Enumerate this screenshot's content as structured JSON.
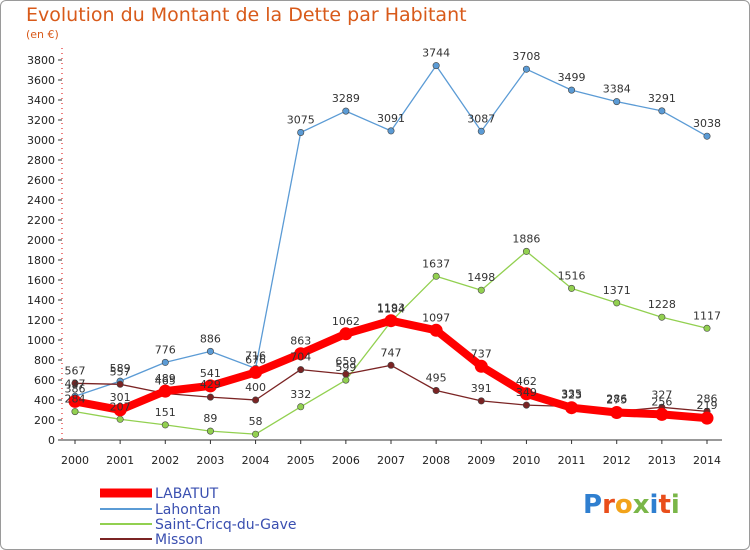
{
  "chart_data": {
    "type": "line",
    "title": "Evolution du Montant de la Dette par Habitant",
    "subtitle": "(en €)",
    "x": [
      "2000",
      "2001",
      "2002",
      "2003",
      "2004",
      "2005",
      "2006",
      "2007",
      "2008",
      "2009",
      "2010",
      "2011",
      "2012",
      "2013",
      "2014"
    ],
    "ylim": [
      0,
      3800
    ],
    "yticks": [
      0,
      200,
      400,
      600,
      800,
      1000,
      1200,
      1400,
      1600,
      1800,
      2000,
      2200,
      2400,
      2600,
      2800,
      3000,
      3200,
      3400,
      3600,
      3800
    ],
    "grid": false,
    "legend_position": "bottom-left",
    "series": [
      {
        "name": "LABATUT",
        "color": "#ff0000",
        "values": [
          386,
          301,
          489,
          541,
          676,
          863,
          1062,
          1193,
          1097,
          737,
          462,
          323,
          275,
          256,
          219
        ]
      },
      {
        "name": "Lahontan",
        "color": "#5b9bd5",
        "values": [
          437,
          589,
          776,
          886,
          716,
          3075,
          3289,
          3091,
          3744,
          3087,
          3708,
          3499,
          3384,
          3291,
          3038
        ]
      },
      {
        "name": "Saint-Cricq-du-Gave",
        "color": "#92d050",
        "values": [
          284,
          207,
          151,
          89,
          58,
          332,
          599,
          1184,
          1637,
          1498,
          1886,
          1516,
          1371,
          1228,
          1117
        ]
      },
      {
        "name": "Misson",
        "color": "#7b2424",
        "values": [
          567,
          557,
          465,
          429,
          400,
          704,
          659,
          747,
          495,
          391,
          349,
          335,
          286,
          327,
          286
        ]
      }
    ]
  },
  "branding": {
    "logo": "Proxiti"
  }
}
